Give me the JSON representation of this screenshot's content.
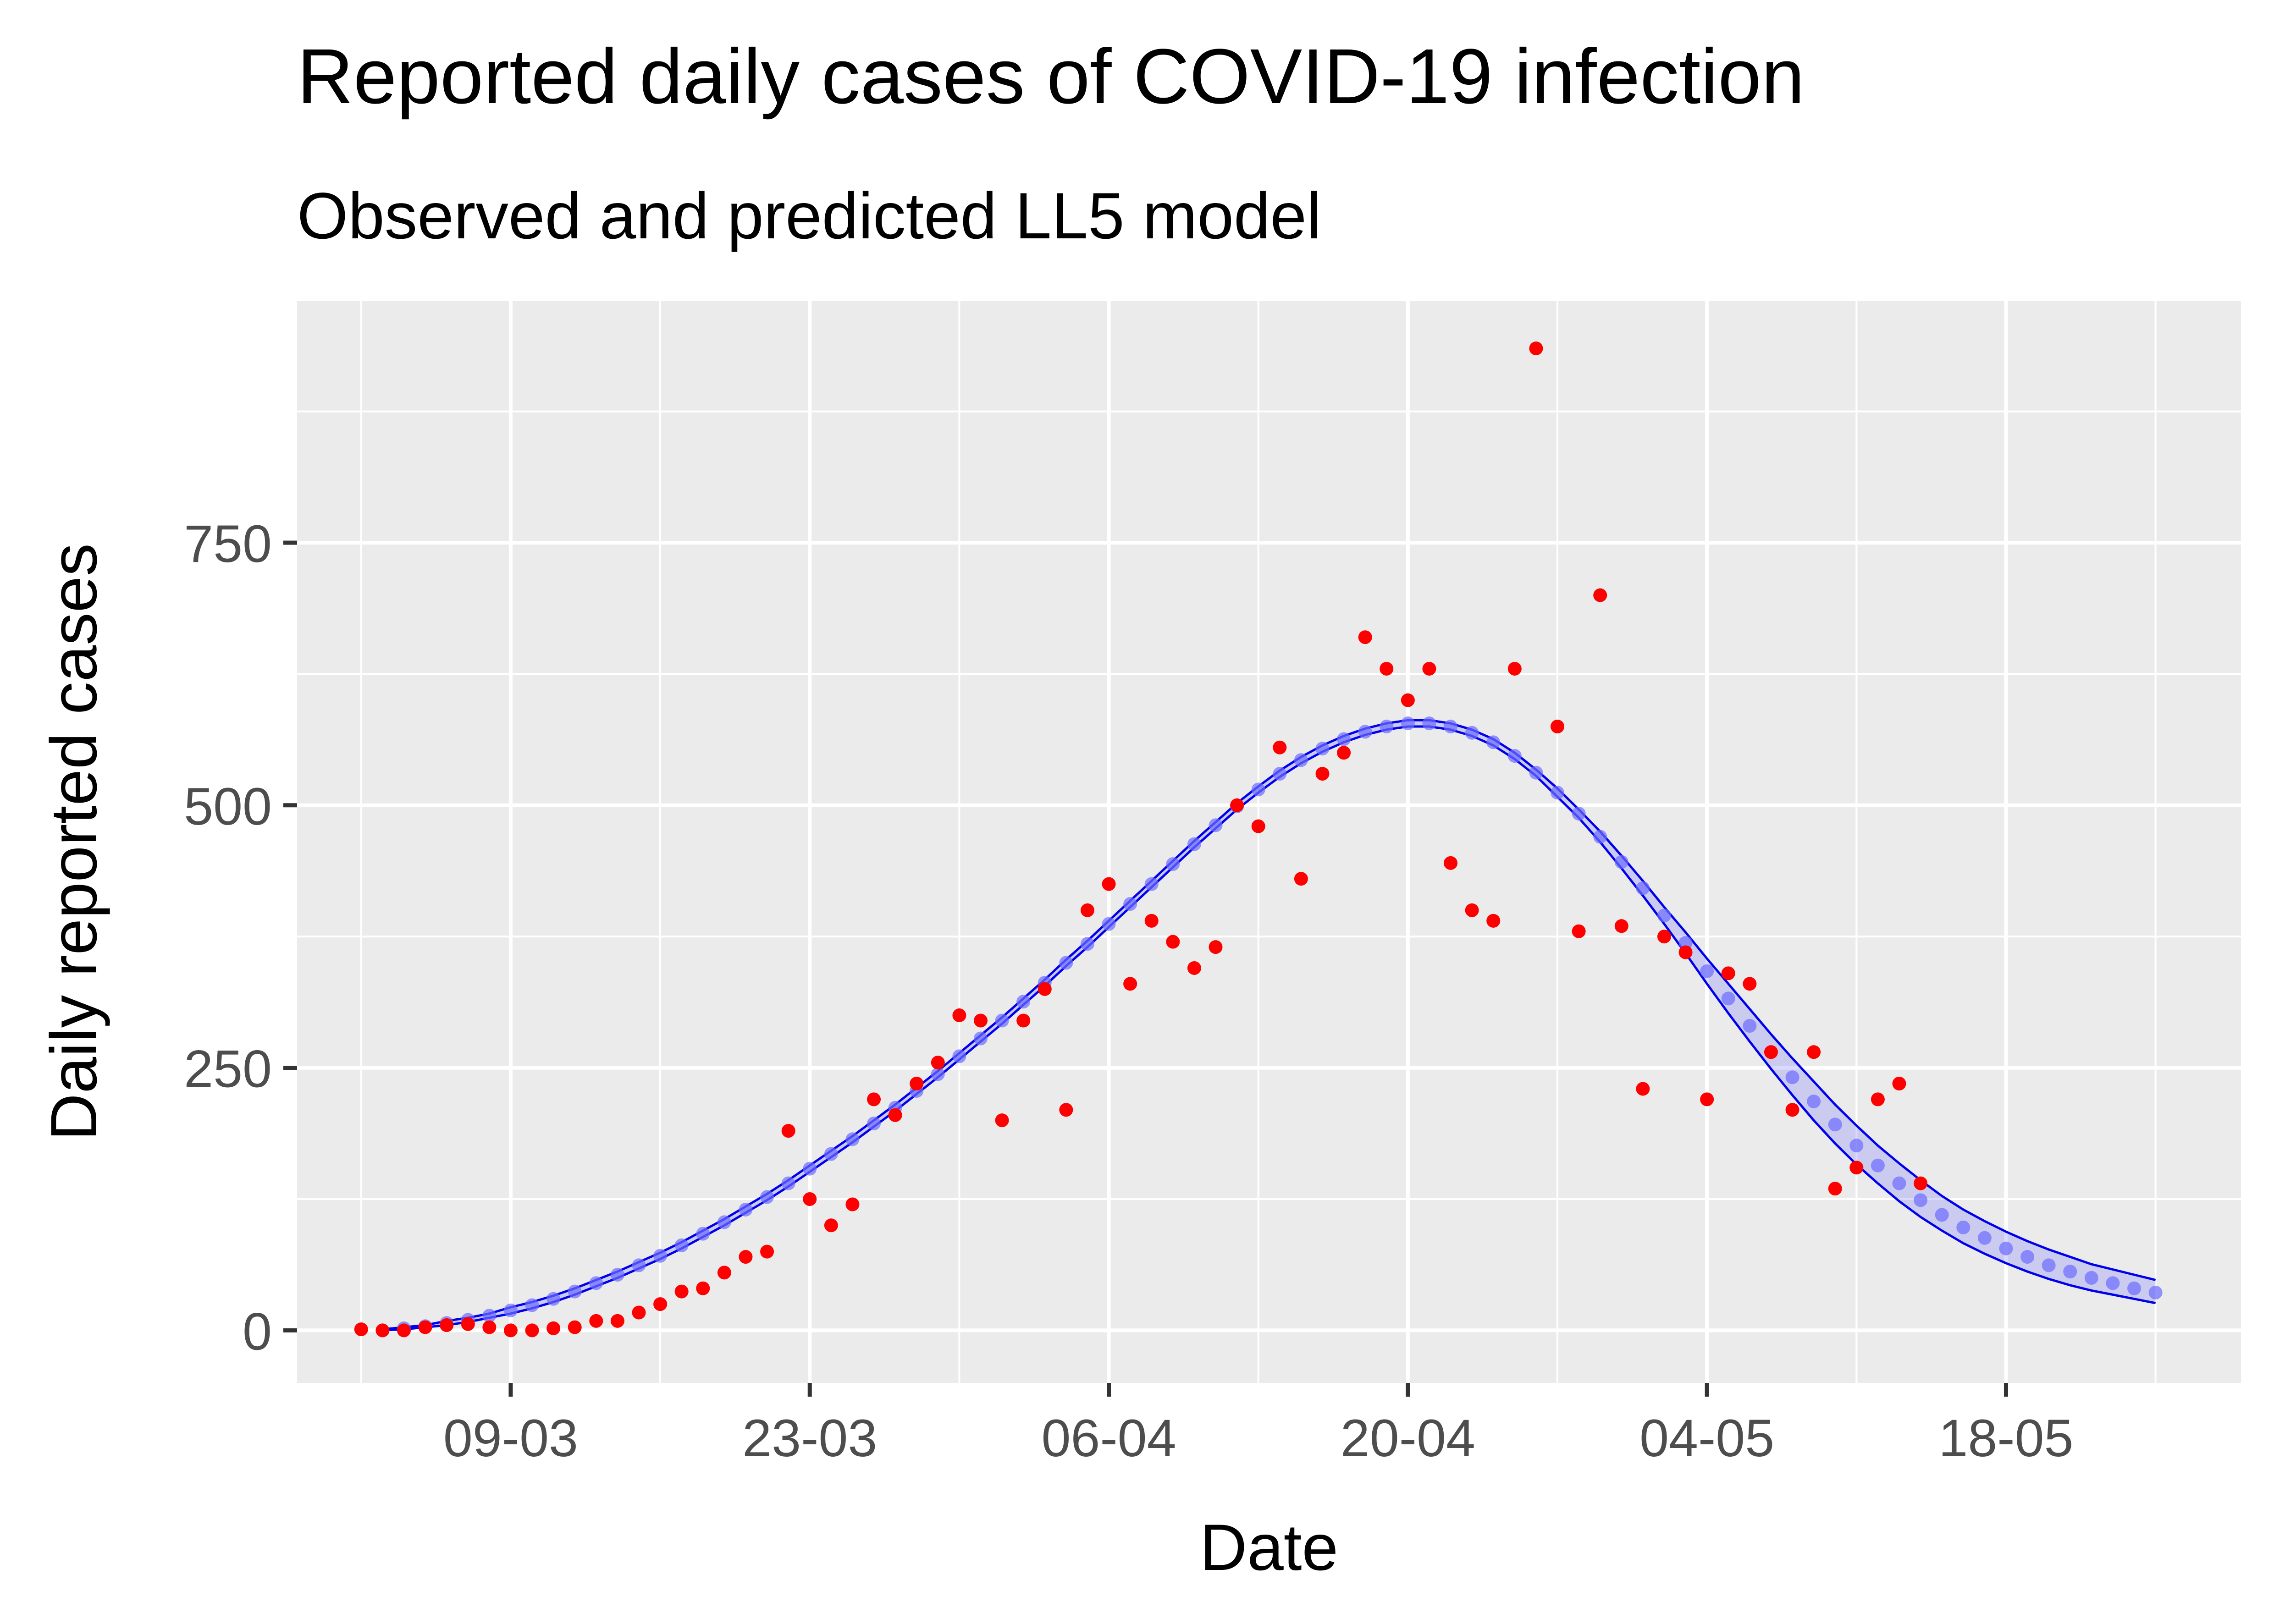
{
  "chart_data": {
    "type": "scatter",
    "title": "Reported daily cases of COVID-19 infection",
    "subtitle": "Observed and predicted LL5 model",
    "xlabel": "Date",
    "ylabel": "Daily reported cases",
    "x_ticks": [
      "2020-03-09",
      "2020-03-23",
      "2020-04-06",
      "2020-04-20",
      "2020-05-04",
      "2020-05-18"
    ],
    "x_tick_labels": [
      "09-03",
      "23-03",
      "06-04",
      "20-04",
      "04-05",
      "18-05"
    ],
    "y_ticks": [
      0,
      250,
      500,
      750
    ],
    "y_tick_labels": [
      "0",
      "250",
      "500",
      "750"
    ],
    "xlim": [
      "2020-02-28",
      "2020-05-29"
    ],
    "ylim": [
      -50,
      980
    ],
    "grid": true,
    "colors": {
      "panel_background": "#ebebeb",
      "grid": "#ffffff",
      "observed": "#ff0000",
      "predicted_line": "#0000ee",
      "predicted_points": "#6b6bff",
      "tick_label": "#4d4d4d",
      "axis_ticks": "#333333",
      "text": "#000000"
    },
    "series": [
      {
        "kind": "observed",
        "marker": "point",
        "x": [
          "2020-03-02",
          "2020-03-03",
          "2020-03-04",
          "2020-03-05",
          "2020-03-06",
          "2020-03-07",
          "2020-03-08",
          "2020-03-09",
          "2020-03-10",
          "2020-03-11",
          "2020-03-12",
          "2020-03-13",
          "2020-03-14",
          "2020-03-15",
          "2020-03-16",
          "2020-03-17",
          "2020-03-18",
          "2020-03-19",
          "2020-03-20",
          "2020-03-21",
          "2020-03-22",
          "2020-03-23",
          "2020-03-24",
          "2020-03-25",
          "2020-03-26",
          "2020-03-27",
          "2020-03-28",
          "2020-03-29",
          "2020-03-30",
          "2020-03-31",
          "2020-04-01",
          "2020-04-02",
          "2020-04-03",
          "2020-04-04",
          "2020-04-05",
          "2020-04-06",
          "2020-04-07",
          "2020-04-08",
          "2020-04-09",
          "2020-04-10",
          "2020-04-11",
          "2020-04-12",
          "2020-04-13",
          "2020-04-14",
          "2020-04-15",
          "2020-04-16",
          "2020-04-17",
          "2020-04-18",
          "2020-04-19",
          "2020-04-20",
          "2020-04-21",
          "2020-04-22",
          "2020-04-23",
          "2020-04-24",
          "2020-04-25",
          "2020-04-26",
          "2020-04-27",
          "2020-04-28",
          "2020-04-29",
          "2020-04-30",
          "2020-05-01",
          "2020-05-02",
          "2020-05-03",
          "2020-05-04",
          "2020-05-05",
          "2020-05-06",
          "2020-05-07",
          "2020-05-08",
          "2020-05-09",
          "2020-05-10",
          "2020-05-11",
          "2020-05-12",
          "2020-05-13",
          "2020-05-14"
        ],
        "y": [
          1,
          0,
          0,
          3,
          5,
          6,
          3,
          0,
          0,
          2,
          3,
          9,
          9,
          17,
          25,
          37,
          40,
          55,
          70,
          75,
          190,
          125,
          100,
          120,
          220,
          205,
          235,
          255,
          300,
          295,
          200,
          295,
          325,
          210,
          400,
          425,
          330,
          390,
          370,
          345,
          365,
          500,
          480,
          555,
          430,
          530,
          550,
          660,
          630,
          600,
          630,
          445,
          400,
          390,
          630,
          935,
          575,
          380,
          700,
          385,
          230,
          375,
          360,
          220,
          340,
          330,
          265,
          210,
          265,
          135,
          155,
          220,
          235,
          140
        ]
      },
      {
        "kind": "predicted",
        "marker": "line+band+points",
        "x": [
          "2020-03-03",
          "2020-03-04",
          "2020-03-05",
          "2020-03-06",
          "2020-03-07",
          "2020-03-08",
          "2020-03-09",
          "2020-03-10",
          "2020-03-11",
          "2020-03-12",
          "2020-03-13",
          "2020-03-14",
          "2020-03-15",
          "2020-03-16",
          "2020-03-17",
          "2020-03-18",
          "2020-03-19",
          "2020-03-20",
          "2020-03-21",
          "2020-03-22",
          "2020-03-23",
          "2020-03-24",
          "2020-03-25",
          "2020-03-26",
          "2020-03-27",
          "2020-03-28",
          "2020-03-29",
          "2020-03-30",
          "2020-03-31",
          "2020-04-01",
          "2020-04-02",
          "2020-04-03",
          "2020-04-04",
          "2020-04-05",
          "2020-04-06",
          "2020-04-07",
          "2020-04-08",
          "2020-04-09",
          "2020-04-10",
          "2020-04-11",
          "2020-04-12",
          "2020-04-13",
          "2020-04-14",
          "2020-04-15",
          "2020-04-16",
          "2020-04-17",
          "2020-04-18",
          "2020-04-19",
          "2020-04-20",
          "2020-04-21",
          "2020-04-22",
          "2020-04-23",
          "2020-04-24",
          "2020-04-25",
          "2020-04-26",
          "2020-04-27",
          "2020-04-28",
          "2020-04-29",
          "2020-04-30",
          "2020-05-01",
          "2020-05-02",
          "2020-05-03",
          "2020-05-04",
          "2020-05-05",
          "2020-05-06",
          "2020-05-07",
          "2020-05-08",
          "2020-05-09",
          "2020-05-10",
          "2020-05-11",
          "2020-05-12",
          "2020-05-13",
          "2020-05-14",
          "2020-05-15",
          "2020-05-16",
          "2020-05-17",
          "2020-05-18",
          "2020-05-19",
          "2020-05-20",
          "2020-05-21",
          "2020-05-22",
          "2020-05-23",
          "2020-05-24",
          "2020-05-25"
        ],
        "y": [
          0,
          2,
          4,
          7,
          10,
          14,
          19,
          24,
          30,
          37,
          45,
          53,
          62,
          71,
          81,
          92,
          103,
          115,
          127,
          140,
          154,
          168,
          182,
          197,
          212,
          228,
          244,
          261,
          278,
          295,
          313,
          331,
          350,
          368,
          387,
          406,
          425,
          444,
          463,
          481,
          499,
          515,
          530,
          543,
          554,
          563,
          570,
          575,
          578,
          578,
          575,
          569,
          560,
          547,
          531,
          512,
          492,
          470,
          446,
          421,
          395,
          369,
          342,
          316,
          290,
          265,
          241,
          218,
          196,
          176,
          157,
          140,
          124,
          110,
          98,
          88,
          78,
          70,
          62,
          56,
          50,
          45,
          40,
          36
        ],
        "band_lower": [
          0,
          1,
          3,
          5,
          8,
          12,
          16,
          21,
          27,
          34,
          42,
          50,
          59,
          68,
          78,
          89,
          100,
          112,
          124,
          137,
          151,
          165,
          179,
          194,
          209,
          225,
          241,
          258,
          275,
          292,
          310,
          328,
          347,
          365,
          384,
          403,
          422,
          441,
          460,
          478,
          496,
          512,
          527,
          540,
          551,
          560,
          567,
          572,
          575,
          575,
          572,
          566,
          557,
          544,
          528,
          508,
          488,
          465,
          440,
          414,
          387,
          359,
          330,
          302,
          275,
          249,
          224,
          200,
          178,
          158,
          140,
          123,
          108,
          95,
          83,
          73,
          64,
          56,
          49,
          43,
          38,
          34,
          30,
          26
        ],
        "band_upper": [
          1,
          3,
          5,
          9,
          12,
          16,
          22,
          27,
          33,
          40,
          48,
          56,
          65,
          74,
          84,
          95,
          106,
          118,
          130,
          143,
          157,
          171,
          185,
          200,
          215,
          231,
          247,
          264,
          281,
          298,
          316,
          334,
          353,
          371,
          390,
          409,
          428,
          447,
          466,
          484,
          502,
          518,
          533,
          546,
          557,
          566,
          573,
          578,
          581,
          581,
          578,
          572,
          563,
          550,
          534,
          516,
          496,
          475,
          452,
          428,
          403,
          379,
          354,
          330,
          306,
          282,
          259,
          237,
          215,
          195,
          176,
          159,
          143,
          128,
          115,
          104,
          94,
          85,
          77,
          70,
          63,
          58,
          53,
          48
        ]
      }
    ]
  }
}
